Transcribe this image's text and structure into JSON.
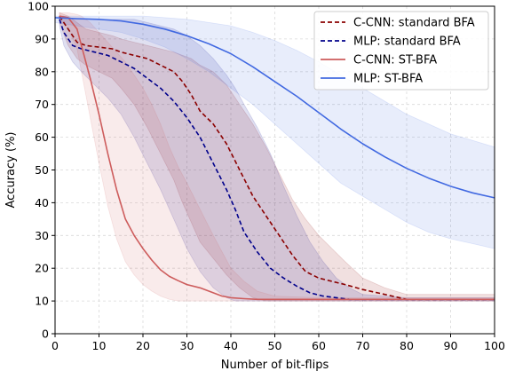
{
  "chart_data": {
    "type": "line",
    "xlabel": "Number of bit-flips",
    "ylabel": "Accuracy (%)",
    "xlim": [
      0,
      100
    ],
    "ylim": [
      0,
      100
    ],
    "xticks": [
      0,
      10,
      20,
      30,
      40,
      50,
      60,
      70,
      80,
      90,
      100
    ],
    "yticks": [
      0,
      10,
      20,
      30,
      40,
      50,
      60,
      70,
      80,
      90,
      100
    ],
    "grid": true,
    "legend_position": "top-right",
    "series": [
      {
        "name": "C-CNN: standard BFA",
        "color": "#8b0000",
        "dash": "dashed",
        "x": [
          1,
          3,
          5,
          7,
          10,
          13,
          15,
          18,
          21,
          24,
          27,
          29,
          31,
          33,
          36,
          39,
          42,
          45,
          48,
          51,
          54,
          57,
          60,
          63,
          66,
          70,
          75,
          80,
          90,
          100
        ],
        "y": [
          97,
          93,
          89,
          88,
          87.5,
          87,
          86,
          85,
          84,
          82,
          80,
          77,
          73,
          68,
          64,
          58,
          50,
          42,
          36,
          30,
          24,
          19,
          17,
          16,
          15,
          13.5,
          12,
          10.5,
          10.5,
          10.5
        ],
        "band_upper": [
          98,
          97,
          95,
          93,
          92,
          91,
          90,
          89,
          88,
          87,
          86,
          85,
          84,
          82,
          80,
          76,
          70,
          64,
          57,
          49,
          41,
          35,
          30,
          26,
          22,
          17,
          14,
          12,
          12,
          12
        ],
        "band_lower": [
          95,
          88,
          84,
          82,
          80,
          78,
          75,
          70,
          63,
          55,
          47,
          40,
          34,
          28,
          23,
          18,
          14,
          11,
          10,
          10,
          10,
          10,
          10,
          10,
          10,
          10,
          10,
          10,
          10,
          10
        ]
      },
      {
        "name": "MLP: standard BFA",
        "color": "#00008b",
        "dash": "dashed",
        "x": [
          1,
          2,
          4,
          6,
          9,
          12,
          15,
          18,
          21,
          24,
          27,
          30,
          33,
          36,
          39,
          41,
          43,
          46,
          49,
          52,
          55,
          58,
          61,
          64,
          67,
          70,
          80,
          90,
          100
        ],
        "y": [
          96,
          92,
          88,
          87,
          86,
          85,
          83,
          81,
          78,
          75,
          71,
          66,
          60,
          52,
          44,
          38,
          31,
          25,
          20,
          17,
          14.5,
          12.5,
          11.5,
          11,
          10.5,
          10.5,
          10.5,
          10.5,
          10.5
        ],
        "band_upper": [
          97,
          97,
          96,
          96,
          96,
          96,
          96,
          96,
          95,
          94,
          93,
          91,
          88,
          84,
          79,
          75,
          70,
          63,
          55,
          45,
          36,
          28,
          22,
          17,
          14,
          12,
          11,
          11,
          11
        ],
        "band_lower": [
          94,
          88,
          83,
          80,
          76,
          72,
          67,
          60,
          52,
          44,
          35,
          26,
          19,
          14,
          11,
          10,
          10,
          10,
          10,
          10,
          10,
          10,
          10,
          10,
          10,
          10,
          10,
          10,
          10
        ]
      },
      {
        "name": "C-CNN: ST-BFA",
        "color": "#cd5c5c",
        "dash": "solid",
        "x": [
          1,
          3,
          5,
          6,
          8,
          10,
          12,
          14,
          16,
          18,
          20,
          22,
          24,
          26,
          28,
          30,
          33,
          36,
          38,
          40,
          43,
          46,
          50,
          60,
          70,
          80,
          90,
          100
        ],
        "y": [
          97,
          96.5,
          93,
          88,
          78,
          67,
          55,
          44,
          35,
          30,
          26,
          22.5,
          19.5,
          17.5,
          16.2,
          15,
          14,
          12.5,
          11.5,
          11,
          10.7,
          10.5,
          10.5,
          10.5,
          10.5,
          10.5,
          10.5,
          10.5
        ],
        "band_upper": [
          98,
          98,
          97.5,
          97,
          95,
          92,
          89,
          86,
          83,
          79,
          75,
          70,
          64,
          57,
          51,
          46,
          38,
          30,
          25,
          20,
          16,
          13,
          11.5,
          11,
          11,
          11,
          11,
          11
        ],
        "band_lower": [
          96,
          93,
          87,
          80,
          66,
          52,
          39,
          29,
          22,
          18,
          15,
          13,
          11.5,
          10.5,
          10,
          10,
          10,
          10,
          10,
          10,
          10,
          10,
          10,
          10,
          10,
          10,
          10,
          10
        ]
      },
      {
        "name": "MLP: ST-BFA",
        "color": "#4169e1",
        "dash": "solid",
        "x": [
          0,
          5,
          10,
          15,
          20,
          25,
          30,
          35,
          40,
          45,
          50,
          55,
          60,
          65,
          70,
          75,
          80,
          85,
          90,
          95,
          100
        ],
        "y": [
          96.5,
          96.2,
          96,
          95.5,
          94.5,
          93,
          91,
          88.5,
          85.5,
          81.5,
          77,
          72.5,
          67.5,
          62.5,
          58,
          54,
          50.5,
          47.5,
          45,
          43,
          41.5
        ],
        "band_upper": [
          97,
          97,
          97,
          97,
          97,
          96.5,
          96,
          95,
          94,
          92,
          89.5,
          86.5,
          83,
          79,
          75,
          71,
          67,
          64,
          61,
          59,
          57
        ],
        "band_lower": [
          95,
          94,
          93,
          92,
          90,
          87.5,
          84,
          80,
          75,
          70,
          64,
          58,
          52,
          46,
          42,
          38,
          34,
          31,
          29,
          27.5,
          26
        ]
      }
    ]
  }
}
